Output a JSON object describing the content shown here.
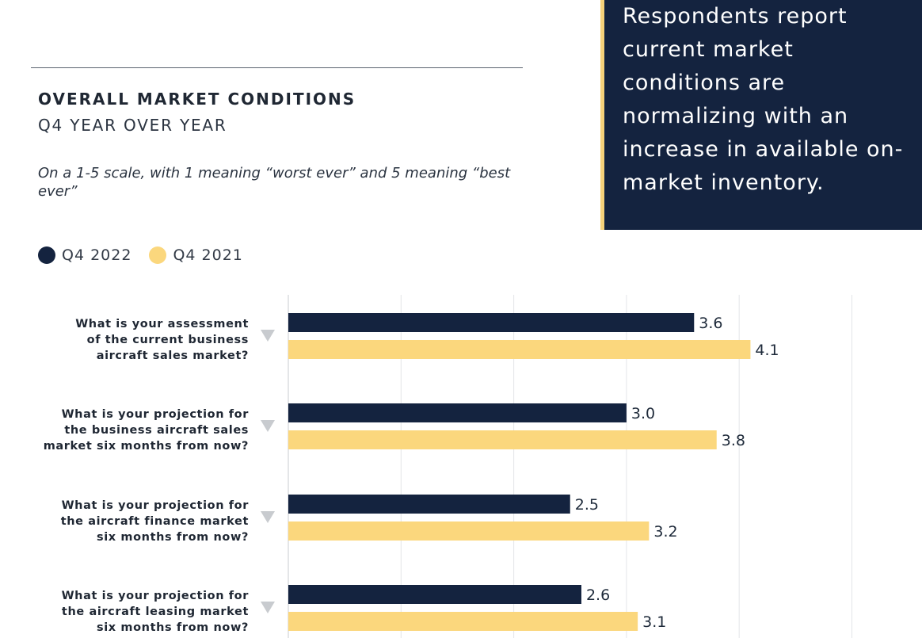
{
  "header": {
    "title": "OVERALL MARKET CONDITIONS",
    "subtitle": "Q4 YEAR OVER YEAR",
    "note": "On a 1-5 scale, with 1 meaning “worst ever” and 5 meaning “best ever”"
  },
  "callout": {
    "text": "Respondents report current market conditions are normalizing with an increase in available on-market inventory."
  },
  "legend": [
    {
      "label": "Q4 2022",
      "color": "#14233f"
    },
    {
      "label": "Q4 2021",
      "color": "#fbd77d"
    }
  ],
  "chart_data": {
    "type": "bar",
    "orientation": "horizontal",
    "categories": [
      [
        "What is your assessment",
        "of the current business",
        "aircraft sales market?"
      ],
      [
        "What is your projection for",
        "the business aircraft sales",
        "market six months from now?"
      ],
      [
        "What is your projection for",
        "the aircraft finance market",
        "six months from now?"
      ],
      [
        "What is your projection for",
        "the aircraft leasing market",
        "six months from now?"
      ]
    ],
    "series": [
      {
        "name": "Q4 2022",
        "values": [
          3.6,
          3.0,
          2.5,
          2.6
        ],
        "labels": [
          "3.6",
          "3.0",
          "2.5",
          "2.6"
        ],
        "color": "#14233f"
      },
      {
        "name": "Q4 2021",
        "values": [
          4.1,
          3.8,
          3.2,
          3.1
        ],
        "labels": [
          "4.1",
          "3.8",
          "3.2",
          "3.1"
        ],
        "color": "#fbd77d"
      }
    ],
    "xlim": [
      0,
      5
    ],
    "grid": true
  }
}
